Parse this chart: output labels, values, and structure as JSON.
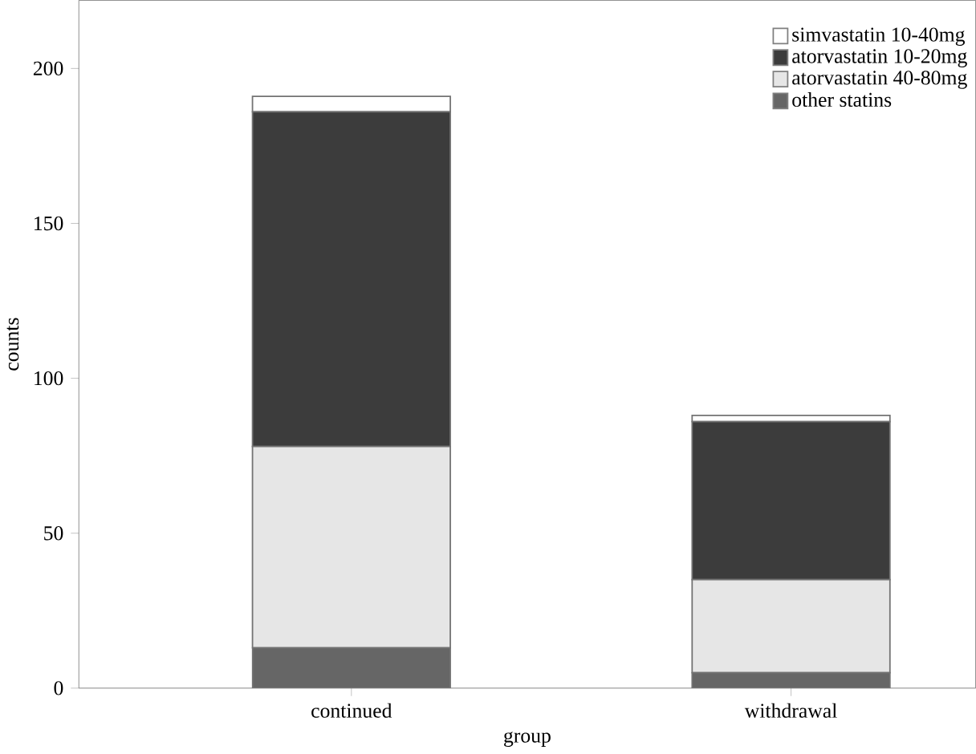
{
  "chart_data": {
    "type": "bar",
    "stacked": true,
    "xlabel": "group",
    "ylabel": "counts",
    "categories": [
      "continued",
      "withdrawal"
    ],
    "series": [
      {
        "name": "other statins",
        "color": "#666666",
        "values": [
          13,
          5
        ]
      },
      {
        "name": "atorvastatin 40-80mg",
        "color": "#e6e6e6",
        "values": [
          65,
          30
        ]
      },
      {
        "name": "atorvastatin 10-20mg",
        "color": "#3c3c3c",
        "values": [
          108,
          51
        ]
      },
      {
        "name": "simvastatin 10-40mg",
        "color": "#ffffff",
        "values": [
          5,
          2
        ]
      }
    ],
    "ylim": [
      0,
      222
    ],
    "yticks": [
      0,
      50,
      100,
      150,
      200
    ],
    "grid": false,
    "legend": "top right"
  }
}
